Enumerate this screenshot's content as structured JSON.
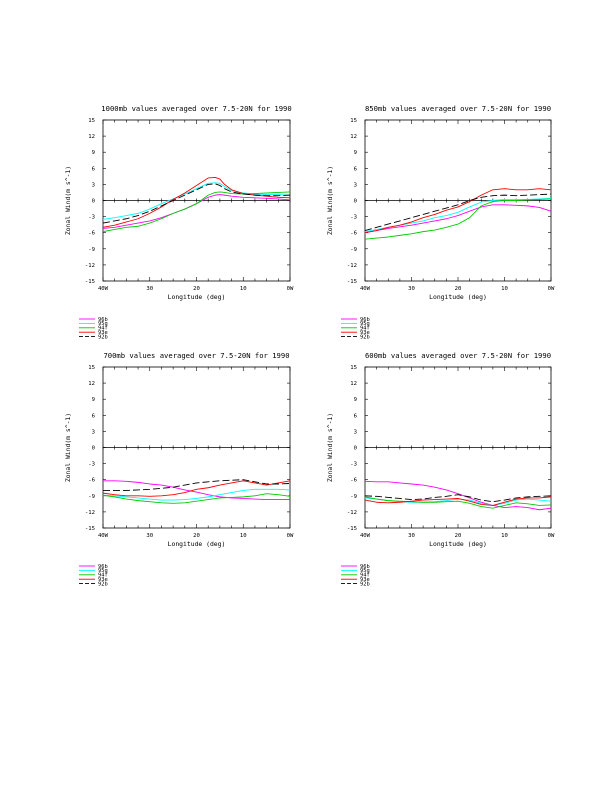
{
  "colors": {
    "96b": "#ff00ff",
    "95g": "#00ffff",
    "94f": "#00cc00",
    "93e": "#ff0000",
    "92b": "#000000"
  },
  "chart_data": [
    {
      "type": "line",
      "title": "1000mb values averaged over 7.5-20N for 1990",
      "xlabel": "Longitude (deg)",
      "ylabel": "Zonal Wind(m s^-1)",
      "xlim": [
        40,
        0
      ],
      "ylim": [
        -15,
        15
      ],
      "xticks": [
        40,
        30,
        20,
        10,
        0
      ],
      "xtick_labels": [
        "40W",
        "30",
        "20",
        "10",
        "0W"
      ],
      "yticks": [
        -15,
        -12,
        -9,
        -6,
        -3,
        0,
        3,
        6,
        9,
        12,
        15
      ],
      "legend_placement": "below",
      "x": [
        40,
        37.5,
        35,
        32.5,
        30,
        27.5,
        25,
        22.5,
        20,
        17.5,
        16,
        15,
        14,
        12.5,
        10,
        7.5,
        5,
        2.5,
        0
      ],
      "series": [
        {
          "name": "96b",
          "color_key": "96b",
          "dash": false,
          "values": [
            -5.2,
            -5.0,
            -4.6,
            -4.2,
            -3.8,
            -3.2,
            -2.4,
            -1.6,
            -0.6,
            0.6,
            1.0,
            1.1,
            1.0,
            0.8,
            0.6,
            0.5,
            0.4,
            0.3,
            0.1
          ]
        },
        {
          "name": "95g",
          "color_key": "95g",
          "dash": false,
          "values": [
            -3.5,
            -3.2,
            -2.8,
            -2.4,
            -1.6,
            -0.6,
            0.3,
            1.2,
            2.2,
            3.2,
            3.3,
            3.2,
            2.6,
            1.8,
            1.4,
            1.2,
            1.1,
            1.1,
            1.0
          ]
        },
        {
          "name": "94f",
          "color_key": "94f",
          "dash": false,
          "values": [
            -5.8,
            -5.4,
            -5.0,
            -4.8,
            -4.2,
            -3.4,
            -2.4,
            -1.6,
            -0.6,
            1.0,
            1.5,
            1.6,
            1.5,
            1.3,
            1.2,
            1.3,
            1.4,
            1.5,
            1.6
          ]
        },
        {
          "name": "93e",
          "color_key": "93e",
          "dash": false,
          "values": [
            -5.0,
            -4.6,
            -4.0,
            -3.4,
            -2.4,
            -1.2,
            0.2,
            1.4,
            2.8,
            4.2,
            4.3,
            4.0,
            3.0,
            2.0,
            1.3,
            1.0,
            0.8,
            0.6,
            0.5
          ]
        },
        {
          "name": "92b",
          "color_key": "92b",
          "dash": true,
          "values": [
            -4.2,
            -3.8,
            -3.4,
            -2.8,
            -2.0,
            -1.0,
            0.0,
            1.0,
            2.0,
            3.0,
            3.1,
            2.8,
            2.2,
            1.6,
            1.2,
            1.0,
            0.9,
            0.9,
            1.0
          ]
        }
      ]
    },
    {
      "type": "line",
      "title": "850mb values averaged over 7.5-20N for 1990",
      "xlabel": "Longitude (deg)",
      "ylabel": "Zonal Wind(m s^-1)",
      "xlim": [
        40,
        0
      ],
      "ylim": [
        -15,
        15
      ],
      "xticks": [
        40,
        30,
        20,
        10,
        0
      ],
      "xtick_labels": [
        "40W",
        "30",
        "20",
        "10",
        "0W"
      ],
      "yticks": [
        -15,
        -12,
        -9,
        -6,
        -3,
        0,
        3,
        6,
        9,
        12,
        15
      ],
      "legend_placement": "below",
      "x": [
        40,
        37.5,
        35,
        32.5,
        30,
        27.5,
        25,
        22.5,
        20,
        17.5,
        15,
        12.5,
        10,
        7.5,
        5,
        2.5,
        0
      ],
      "series": [
        {
          "name": "96b",
          "color_key": "96b",
          "dash": false,
          "values": [
            -6.0,
            -5.6,
            -5.2,
            -4.9,
            -4.6,
            -4.2,
            -3.8,
            -3.4,
            -2.8,
            -2.0,
            -1.2,
            -0.8,
            -0.8,
            -0.9,
            -1.0,
            -1.3,
            -2.0
          ]
        },
        {
          "name": "95g",
          "color_key": "95g",
          "dash": false,
          "values": [
            -5.8,
            -5.4,
            -5.0,
            -4.6,
            -4.2,
            -3.8,
            -3.2,
            -2.8,
            -2.2,
            -1.2,
            -0.3,
            0.0,
            0.2,
            0.2,
            0.2,
            0.3,
            0.4
          ]
        },
        {
          "name": "94f",
          "color_key": "94f",
          "dash": false,
          "values": [
            -7.2,
            -7.0,
            -6.8,
            -6.5,
            -6.2,
            -5.8,
            -5.5,
            -5.0,
            -4.4,
            -3.2,
            -1.0,
            -0.2,
            0.0,
            0.0,
            0.1,
            0.2,
            0.3
          ]
        },
        {
          "name": "93e",
          "color_key": "93e",
          "dash": false,
          "values": [
            -6.0,
            -5.6,
            -5.0,
            -4.6,
            -4.0,
            -3.2,
            -2.6,
            -1.8,
            -1.2,
            -0.2,
            1.0,
            2.0,
            2.2,
            2.0,
            2.0,
            2.2,
            2.0
          ]
        },
        {
          "name": "92b",
          "color_key": "92b",
          "dash": true,
          "values": [
            -5.6,
            -5.0,
            -4.4,
            -3.8,
            -3.2,
            -2.6,
            -2.0,
            -1.4,
            -0.8,
            0.0,
            0.6,
            0.9,
            1.0,
            0.9,
            1.0,
            1.1,
            1.2
          ]
        }
      ]
    },
    {
      "type": "line",
      "title": "700mb values averaged over 7.5-20N for 1990",
      "xlabel": "Longitude (deg)",
      "ylabel": "Zonal Wind(m s^-1)",
      "xlim": [
        40,
        0
      ],
      "ylim": [
        -15,
        15
      ],
      "xticks": [
        40,
        30,
        20,
        10,
        0
      ],
      "xtick_labels": [
        "40W",
        "30",
        "20",
        "10",
        "0W"
      ],
      "yticks": [
        -15,
        -12,
        -9,
        -6,
        -3,
        0,
        3,
        6,
        9,
        12,
        15
      ],
      "legend_placement": "below",
      "x": [
        40,
        37.5,
        35,
        32.5,
        30,
        27.5,
        25,
        22.5,
        20,
        17.5,
        15,
        12.5,
        10,
        7.5,
        5,
        2.5,
        0
      ],
      "series": [
        {
          "name": "96b",
          "color_key": "96b",
          "dash": false,
          "values": [
            -6.2,
            -6.2,
            -6.3,
            -6.5,
            -6.8,
            -7.0,
            -7.4,
            -7.9,
            -8.3,
            -8.8,
            -9.2,
            -9.4,
            -9.5,
            -9.6,
            -9.7,
            -9.7,
            -9.7
          ]
        },
        {
          "name": "95g",
          "color_key": "95g",
          "dash": false,
          "values": [
            -8.9,
            -9.0,
            -9.2,
            -9.4,
            -9.6,
            -9.8,
            -9.8,
            -9.7,
            -9.5,
            -9.2,
            -8.8,
            -8.4,
            -8.0,
            -7.8,
            -7.8,
            -7.8,
            -7.9
          ]
        },
        {
          "name": "94f",
          "color_key": "94f",
          "dash": false,
          "values": [
            -8.9,
            -9.2,
            -9.6,
            -9.9,
            -10.1,
            -10.3,
            -10.4,
            -10.3,
            -10.0,
            -9.7,
            -9.4,
            -9.3,
            -9.2,
            -9.0,
            -8.6,
            -8.8,
            -9.1
          ]
        },
        {
          "name": "93e",
          "color_key": "93e",
          "dash": false,
          "values": [
            -8.5,
            -8.8,
            -9.0,
            -9.0,
            -9.1,
            -9.0,
            -8.8,
            -8.4,
            -7.8,
            -7.5,
            -7.0,
            -6.6,
            -6.2,
            -6.6,
            -7.0,
            -6.6,
            -6.2
          ]
        },
        {
          "name": "92b",
          "color_key": "92b",
          "dash": true,
          "values": [
            -8.0,
            -8.0,
            -8.0,
            -7.9,
            -7.8,
            -7.6,
            -7.4,
            -7.0,
            -6.6,
            -6.4,
            -6.2,
            -6.1,
            -6.0,
            -6.4,
            -6.8,
            -6.8,
            -6.7
          ]
        }
      ]
    },
    {
      "type": "line",
      "title": "600mb values averaged over 7.5-20N for 1990",
      "xlabel": "Longitude (deg)",
      "ylabel": "Zonal Wind(m s^-1)",
      "xlim": [
        40,
        0
      ],
      "ylim": [
        -15,
        15
      ],
      "xticks": [
        40,
        30,
        20,
        10,
        0
      ],
      "xtick_labels": [
        "40W",
        "30",
        "20",
        "10",
        "0W"
      ],
      "yticks": [
        -15,
        -12,
        -9,
        -6,
        -3,
        0,
        3,
        6,
        9,
        12,
        15
      ],
      "legend_placement": "below",
      "x": [
        40,
        37.5,
        35,
        32.5,
        30,
        27.5,
        25,
        22.5,
        20,
        17.5,
        15,
        12.5,
        10,
        7.5,
        5,
        2.5,
        0
      ],
      "series": [
        {
          "name": "96b",
          "color_key": "96b",
          "dash": false,
          "values": [
            -6.3,
            -6.4,
            -6.4,
            -6.6,
            -6.8,
            -7.0,
            -7.4,
            -7.9,
            -8.6,
            -9.4,
            -10.2,
            -10.8,
            -11.2,
            -11.0,
            -11.2,
            -11.6,
            -11.3
          ]
        },
        {
          "name": "95g",
          "color_key": "95g",
          "dash": false,
          "values": [
            -9.4,
            -9.6,
            -9.9,
            -10.1,
            -10.2,
            -10.2,
            -10.1,
            -9.9,
            -9.6,
            -9.8,
            -10.4,
            -10.8,
            -10.4,
            -9.8,
            -9.6,
            -9.8,
            -10.0
          ]
        },
        {
          "name": "94f",
          "color_key": "94f",
          "dash": false,
          "values": [
            -9.2,
            -9.6,
            -9.9,
            -10.0,
            -10.1,
            -10.2,
            -10.2,
            -10.1,
            -10.0,
            -10.4,
            -11.0,
            -11.3,
            -10.8,
            -10.3,
            -10.5,
            -10.8,
            -10.7
          ]
        },
        {
          "name": "93e",
          "color_key": "93e",
          "dash": false,
          "values": [
            -9.8,
            -10.2,
            -10.3,
            -10.2,
            -10.0,
            -9.8,
            -9.7,
            -9.6,
            -9.5,
            -10.0,
            -10.6,
            -10.8,
            -10.2,
            -9.6,
            -9.4,
            -9.4,
            -9.2
          ]
        },
        {
          "name": "92b",
          "color_key": "92b",
          "dash": true,
          "values": [
            -9.0,
            -9.1,
            -9.3,
            -9.5,
            -9.7,
            -9.6,
            -9.3,
            -9.1,
            -8.8,
            -9.2,
            -9.8,
            -10.1,
            -9.8,
            -9.4,
            -9.2,
            -9.1,
            -9.0
          ]
        }
      ]
    }
  ]
}
